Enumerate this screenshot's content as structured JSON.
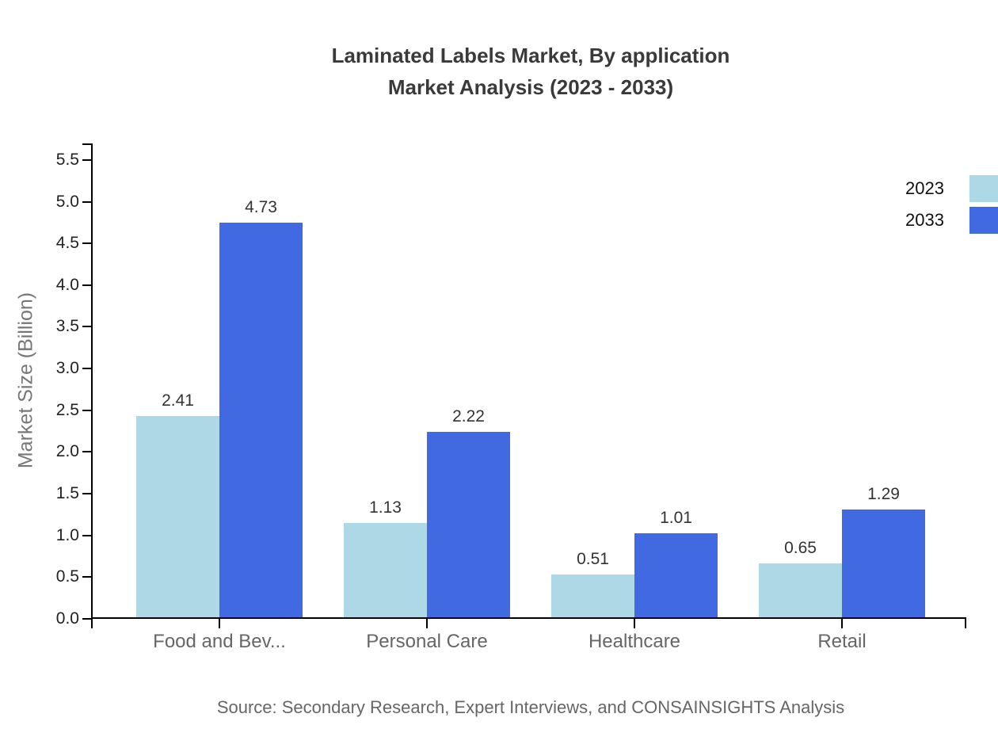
{
  "page": {
    "background": "#ffffff"
  },
  "title": {
    "line1": "Laminated Labels Market, By application",
    "line2": "Market Analysis (2023 - 2033)"
  },
  "chart_data": {
    "type": "bar",
    "title": "Laminated Labels Market, By application Market Analysis (2023 - 2033)",
    "xlabel": "",
    "ylabel": "Market Size (Billion)",
    "categories": [
      "Food and Bev...",
      "Personal Care",
      "Healthcare",
      "Retail"
    ],
    "series": [
      {
        "name": "2023",
        "color": "#ADD8E6",
        "values": [
          2.41,
          1.13,
          0.51,
          0.65
        ]
      },
      {
        "name": "2033",
        "color": "#4169E1",
        "values": [
          4.73,
          2.22,
          1.01,
          1.29
        ]
      }
    ],
    "ylim": [
      0,
      5.5
    ],
    "ytick_step": 0.5,
    "ytick_decimals": 1,
    "value_label_decimals": 2,
    "grid": false,
    "legend_position": "top-right",
    "axis_color": "#000000",
    "tick_label_color": "#222222",
    "value_label_color": "#333333",
    "category_label_color": "#666666"
  },
  "source": {
    "text": "Source: Secondary Research, Expert Interviews, and CONSAINSIGHTS Analysis"
  }
}
